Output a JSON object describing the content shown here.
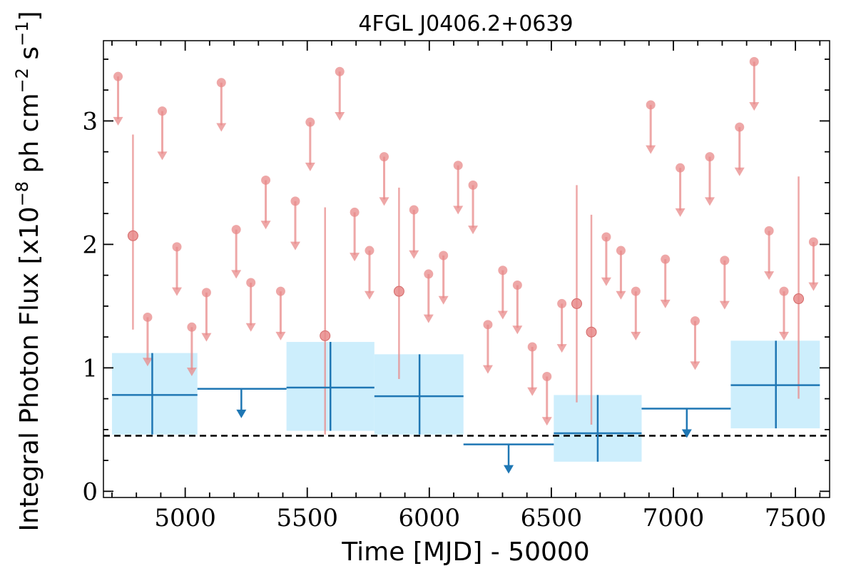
{
  "chart_data": {
    "type": "scatter",
    "title": "4FGL J0406.2+0639",
    "xlabel": "Time [MJD] - 50000",
    "ylabel": "Integral Photon Flux [x10",
    "ylabel_exponent": "−8",
    "ylabel_units_mid": " ph cm",
    "ylabel_units_exp2": "−2",
    "ylabel_units_end": " s",
    "ylabel_units_exp3": "−1",
    "ylabel_close": "]",
    "xlim": [
      4665,
      7640
    ],
    "ylim": [
      -0.05,
      3.65
    ],
    "xticks": [
      5000,
      5500,
      6000,
      6500,
      7000,
      7500
    ],
    "yticks": [
      0,
      1,
      2,
      3
    ],
    "baseline": 0.45,
    "colors": {
      "monthly": "#e88a8a",
      "yearly": "#1f77b4",
      "band": "#cdeefc",
      "baseline": "#000000"
    },
    "series": [
      {
        "kind": "monthly_upper_limits",
        "points": [
          {
            "x": 4725,
            "y": 3.36
          },
          {
            "x": 4846,
            "y": 1.41
          },
          {
            "x": 4906,
            "y": 3.08
          },
          {
            "x": 4966,
            "y": 1.98
          },
          {
            "x": 5027,
            "y": 1.33
          },
          {
            "x": 5087,
            "y": 1.61
          },
          {
            "x": 5148,
            "y": 3.31
          },
          {
            "x": 5209,
            "y": 2.12
          },
          {
            "x": 5269,
            "y": 1.69
          },
          {
            "x": 5330,
            "y": 2.52
          },
          {
            "x": 5391,
            "y": 1.62
          },
          {
            "x": 5451,
            "y": 2.35
          },
          {
            "x": 5512,
            "y": 2.99
          },
          {
            "x": 5633,
            "y": 3.4
          },
          {
            "x": 5694,
            "y": 2.26
          },
          {
            "x": 5755,
            "y": 1.95
          },
          {
            "x": 5815,
            "y": 2.71
          },
          {
            "x": 5937,
            "y": 2.28
          },
          {
            "x": 5997,
            "y": 1.76
          },
          {
            "x": 6058,
            "y": 1.91
          },
          {
            "x": 6118,
            "y": 2.64
          },
          {
            "x": 6179,
            "y": 2.48
          },
          {
            "x": 6240,
            "y": 1.35
          },
          {
            "x": 6301,
            "y": 1.79
          },
          {
            "x": 6361,
            "y": 1.67
          },
          {
            "x": 6422,
            "y": 1.17
          },
          {
            "x": 6482,
            "y": 0.93
          },
          {
            "x": 6543,
            "y": 1.52
          },
          {
            "x": 6725,
            "y": 2.06
          },
          {
            "x": 6785,
            "y": 1.95
          },
          {
            "x": 6846,
            "y": 1.62
          },
          {
            "x": 6907,
            "y": 3.13
          },
          {
            "x": 6967,
            "y": 1.88
          },
          {
            "x": 7028,
            "y": 2.62
          },
          {
            "x": 7089,
            "y": 1.38
          },
          {
            "x": 7149,
            "y": 2.71
          },
          {
            "x": 7210,
            "y": 1.87
          },
          {
            "x": 7271,
            "y": 2.95
          },
          {
            "x": 7331,
            "y": 3.48
          },
          {
            "x": 7392,
            "y": 2.11
          },
          {
            "x": 7453,
            "y": 1.62
          },
          {
            "x": 7574,
            "y": 2.02
          }
        ]
      },
      {
        "kind": "monthly_detections",
        "points": [
          {
            "x": 4786,
            "y": 2.07,
            "ylow": 1.31,
            "yhigh": 2.89
          },
          {
            "x": 5573,
            "y": 1.26,
            "ylow": 0.46,
            "yhigh": 2.3
          },
          {
            "x": 5876,
            "y": 1.62,
            "ylow": 0.91,
            "yhigh": 2.46
          },
          {
            "x": 6604,
            "y": 1.52,
            "ylow": 0.72,
            "yhigh": 2.48
          },
          {
            "x": 6664,
            "y": 1.29,
            "ylow": 0.54,
            "yhigh": 2.24
          },
          {
            "x": 7513,
            "y": 1.56,
            "ylow": 0.75,
            "yhigh": 2.55
          }
        ]
      },
      {
        "kind": "yearly_detections",
        "points": [
          {
            "x": 4865,
            "xmin": 4700,
            "xmax": 5050,
            "y": 0.78,
            "ylow": 0.46,
            "yhigh": 1.12
          },
          {
            "x": 5595,
            "xmin": 5415,
            "xmax": 5775,
            "y": 0.84,
            "ylow": 0.49,
            "yhigh": 1.21
          },
          {
            "x": 5960,
            "xmin": 5775,
            "xmax": 6140,
            "y": 0.77,
            "ylow": 0.46,
            "yhigh": 1.11
          },
          {
            "x": 6690,
            "xmin": 6510,
            "xmax": 6870,
            "y": 0.47,
            "ylow": 0.24,
            "yhigh": 0.78
          },
          {
            "x": 7420,
            "xmin": 7235,
            "xmax": 7600,
            "y": 0.86,
            "ylow": 0.51,
            "yhigh": 1.22
          }
        ]
      },
      {
        "kind": "yearly_upper_limits",
        "points": [
          {
            "x": 5230,
            "xmin": 5050,
            "xmax": 5415,
            "y": 0.83
          },
          {
            "x": 6325,
            "xmin": 6140,
            "xmax": 6510,
            "y": 0.38
          },
          {
            "x": 7055,
            "xmin": 6870,
            "xmax": 7235,
            "y": 0.67
          }
        ]
      }
    ]
  }
}
